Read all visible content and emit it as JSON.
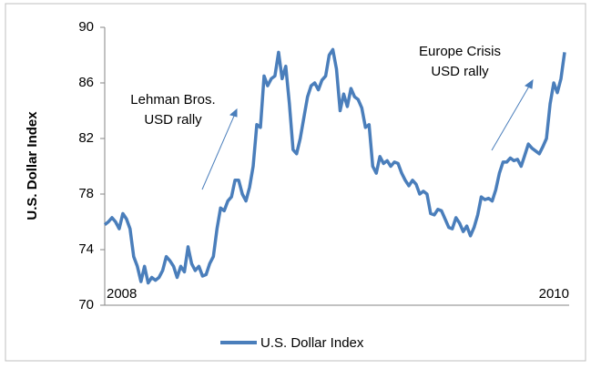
{
  "chart_data": {
    "type": "line",
    "y_label": "U.S. Dollar Index",
    "annotations": [
      "2008",
      "2010",
      "Lehman Bros.",
      "USD rally",
      "Europe Crisis",
      "USD rally"
    ],
    "series": [
      {
        "name": "U.S. Dollar Index",
        "color": "#4a7ebb",
        "values": [
          75.8,
          76,
          76.3,
          76,
          75.5,
          76.6,
          76.2,
          75.5,
          73.5,
          72.8,
          71.7,
          72.8,
          71.6,
          72,
          71.8,
          72,
          72.5,
          73.5,
          73.2,
          72.8,
          72,
          72.8,
          72.4,
          74.2,
          73,
          72.5,
          72.8,
          72.1,
          72.2,
          73,
          73.5,
          75.5,
          77,
          76.8,
          77.5,
          77.8,
          79,
          79,
          78,
          77.5,
          78.5,
          80,
          83,
          82.8,
          86.5,
          85.8,
          86.3,
          86.5,
          88.2,
          86.3,
          87.2,
          84.5,
          81.2,
          80.9,
          82,
          83.5,
          85,
          85.8,
          86,
          85.5,
          86.2,
          86.5,
          88,
          88.4,
          87,
          84,
          85.2,
          84.3,
          85.6,
          85,
          84.8,
          84.2,
          82.8,
          83,
          80,
          79.5,
          80.7,
          80.2,
          80.4,
          80,
          80.3,
          80.2,
          79.5,
          79,
          78.6,
          79,
          78.7,
          78,
          78.2,
          78,
          76.6,
          76.5,
          76.9,
          76.8,
          76.2,
          75.6,
          75.5,
          76.3,
          75.9,
          75.3,
          75.7,
          75,
          75.6,
          76.5,
          77.8,
          77.6,
          77.7,
          77.5,
          78.3,
          79.5,
          80.3,
          80.3,
          80.6,
          80.4,
          80.5,
          80,
          80.8,
          81.6,
          81.3,
          81.1,
          80.9,
          81.4,
          82,
          84.5,
          86,
          85.3,
          86.3,
          88.2
        ]
      }
    ],
    "ylim": [
      70,
      90
    ],
    "yticks": [
      70,
      74,
      78,
      82,
      86,
      90
    ],
    "grid": false,
    "legend": "bottom"
  }
}
